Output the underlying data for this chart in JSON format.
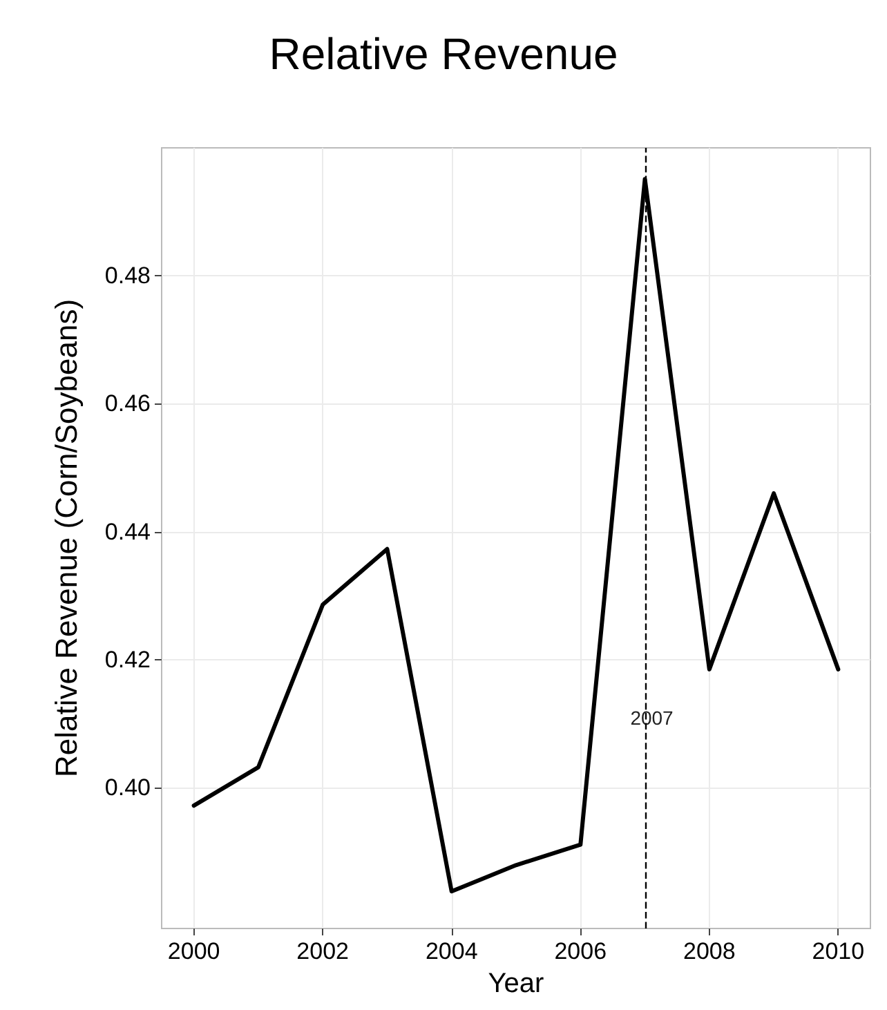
{
  "chart_data": {
    "type": "line",
    "title": "Relative Revenue",
    "xlabel": "Year",
    "ylabel": "Relative Revenue (Corn/Soybeans)",
    "x": [
      2000,
      2001,
      2002,
      2003,
      2004,
      2005,
      2006,
      2007,
      2008,
      2009,
      2010
    ],
    "series": [
      {
        "color": "#000000",
        "values": [
          0.3972,
          0.4032,
          0.4286,
          0.4373,
          0.3838,
          0.3879,
          0.3911,
          0.4951,
          0.4185,
          0.446,
          0.4185
        ]
      }
    ],
    "xlim": [
      1999.5,
      2010.5
    ],
    "xticks": [
      2000,
      2002,
      2004,
      2006,
      2008,
      2010
    ],
    "ylim": [
      0.378,
      0.5
    ],
    "yticks": [
      {
        "value": 0.4,
        "label": "0.40"
      },
      0.42,
      0.44,
      0.46,
      0.48
    ],
    "ref_lines": [
      {
        "axis": "x",
        "value": 2007,
        "label": "2007",
        "color": "#000000",
        "line_style": "dashed"
      }
    ],
    "grid": true,
    "marker": "none",
    "line_style": "solid"
  }
}
